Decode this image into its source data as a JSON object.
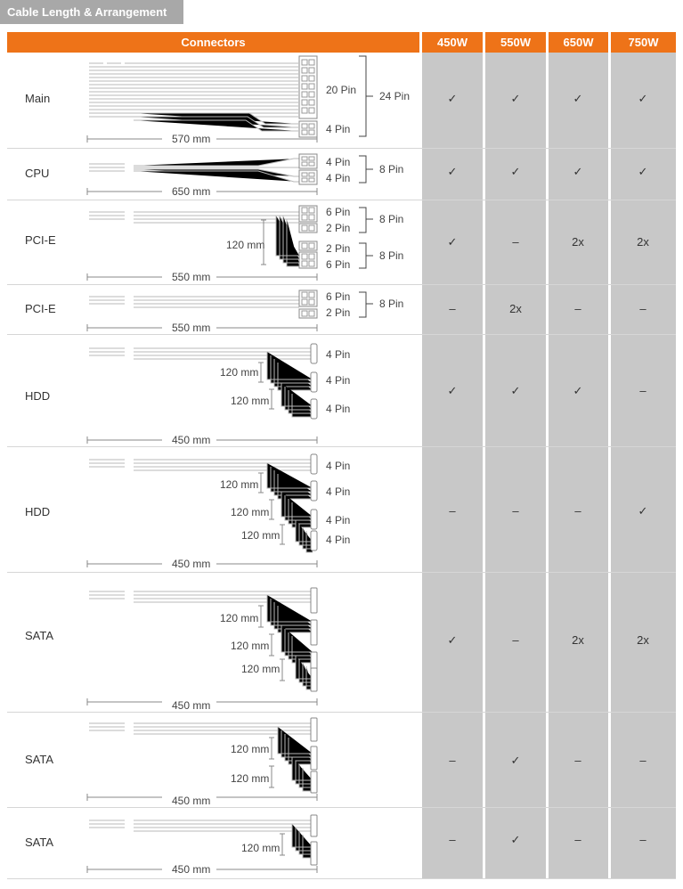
{
  "title": "Cable Length & Arrangement",
  "header": {
    "connectors": "Connectors",
    "models": [
      "450W",
      "550W",
      "650W",
      "750W"
    ]
  },
  "rows": [
    {
      "label": "Main",
      "values": [
        "✓",
        "✓",
        "✓",
        "✓"
      ],
      "pins": [
        "20 Pin",
        "4 Pin"
      ],
      "group": [
        "24 Pin"
      ],
      "spacing": [],
      "length": "570 mm"
    },
    {
      "label": "CPU",
      "values": [
        "✓",
        "✓",
        "✓",
        "✓"
      ],
      "pins": [
        "4 Pin",
        "4 Pin"
      ],
      "group": [
        "8 Pin"
      ],
      "spacing": [],
      "length": "650 mm"
    },
    {
      "label": "PCI-E",
      "values": [
        "✓",
        "–",
        "2x",
        "2x"
      ],
      "pins": [
        "6 Pin",
        "2 Pin",
        "2 Pin",
        "6 Pin"
      ],
      "group": [
        "8 Pin",
        "8 Pin"
      ],
      "spacing": [
        "120 mm"
      ],
      "length": "550 mm"
    },
    {
      "label": "PCI-E",
      "values": [
        "–",
        "2x",
        "–",
        "–"
      ],
      "pins": [
        "6 Pin",
        "2 Pin"
      ],
      "group": [
        "8 Pin"
      ],
      "spacing": [],
      "length": "550 mm"
    },
    {
      "label": "HDD",
      "values": [
        "✓",
        "✓",
        "✓",
        "–"
      ],
      "pins": [
        "4 Pin",
        "4 Pin",
        "4 Pin"
      ],
      "group": [],
      "spacing": [
        "120 mm",
        "120 mm"
      ],
      "length": "450 mm"
    },
    {
      "label": "HDD",
      "values": [
        "–",
        "–",
        "–",
        "✓"
      ],
      "pins": [
        "4 Pin",
        "4 Pin",
        "4 Pin",
        "4 Pin"
      ],
      "group": [],
      "spacing": [
        "120 mm",
        "120 mm",
        "120 mm"
      ],
      "length": "450 mm"
    },
    {
      "label": "SATA",
      "values": [
        "✓",
        "–",
        "2x",
        "2x"
      ],
      "pins": [],
      "group": [],
      "spacing": [
        "120 mm",
        "120 mm",
        "120 mm"
      ],
      "length": "450 mm"
    },
    {
      "label": "SATA",
      "values": [
        "–",
        "✓",
        "–",
        "–"
      ],
      "pins": [],
      "group": [],
      "spacing": [
        "120 mm",
        "120 mm"
      ],
      "length": "450 mm"
    },
    {
      "label": "SATA",
      "values": [
        "–",
        "✓",
        "–",
        "–"
      ],
      "pins": [],
      "group": [],
      "spacing": [
        "120 mm"
      ],
      "length": "450 mm"
    }
  ],
  "colors": {
    "accent": "#ee7318",
    "cell_bg": "#c8c8c8",
    "tab_bg": "#a8a8a8"
  }
}
